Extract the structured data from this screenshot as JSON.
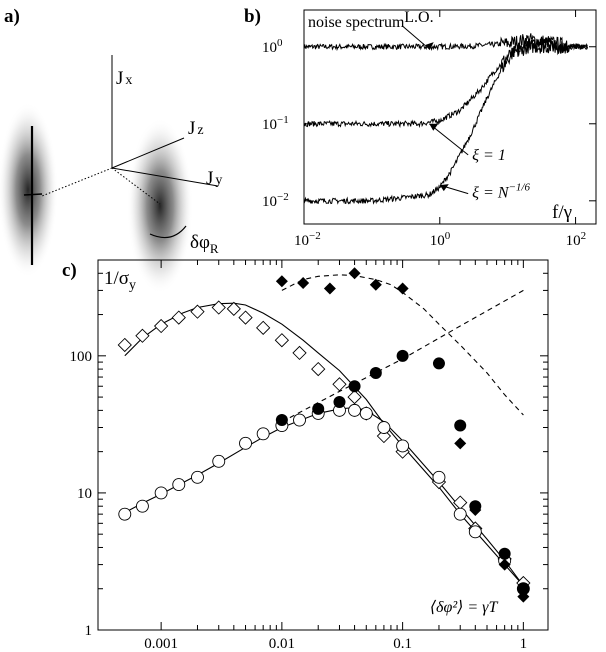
{
  "panels": {
    "a": {
      "label": "a)",
      "axes": [
        "J",
        "J",
        "J"
      ],
      "axis_subscripts": [
        "x",
        "z",
        "y"
      ],
      "angle_symbol": "δφ",
      "angle_subscript": "R"
    },
    "b": {
      "label": "b)"
    },
    "c": {
      "label": "c)"
    }
  },
  "chart_data": [
    {
      "panel": "b",
      "type": "line",
      "title": "noise spectrum",
      "xlabel": "f/γ",
      "ylabel": "",
      "xscale": "log",
      "yscale": "log",
      "xlim": [
        0.01,
        200
      ],
      "ylim": [
        0.005,
        3
      ],
      "x_ticks": [
        "10",
        "10",
        "10"
      ],
      "x_tick_exponents": [
        "−2",
        "0",
        "2"
      ],
      "y_ticks": [
        "10",
        "10",
        "10"
      ],
      "y_tick_exponents": [
        "−2",
        "−1",
        "0"
      ],
      "grid": false,
      "series": [
        {
          "name": "L.O.",
          "x": [
            0.01,
            0.1,
            1,
            3,
            10,
            20,
            40,
            100,
            150
          ],
          "y": [
            1.0,
            1.0,
            1.0,
            1.02,
            1.1,
            1.25,
            1.15,
            1.0,
            1.0
          ]
        },
        {
          "name": "ξ = 1",
          "x": [
            0.01,
            0.1,
            0.5,
            1,
            2,
            4,
            6,
            10,
            20,
            50,
            150
          ],
          "y": [
            0.1,
            0.1,
            0.1,
            0.11,
            0.15,
            0.28,
            0.45,
            0.75,
            1.0,
            1.0,
            1.0
          ]
        },
        {
          "name": "ξ = N^(−1/6)",
          "x": [
            0.01,
            0.1,
            0.3,
            0.7,
            1,
            1.5,
            2,
            3,
            5,
            8,
            12,
            20,
            50,
            150
          ],
          "y": [
            0.01,
            0.01,
            0.011,
            0.012,
            0.015,
            0.025,
            0.04,
            0.08,
            0.22,
            0.5,
            0.85,
            1.05,
            1.0,
            1.0
          ]
        }
      ],
      "annotations": [
        {
          "text": "L.O.",
          "x": 0.3,
          "y": 2.1
        },
        {
          "text": "ξ = 1",
          "x": 3,
          "y": 0.034
        },
        {
          "text": "ξ = N",
          "superscript": "−1/6",
          "x": 3,
          "y": 0.011
        }
      ]
    },
    {
      "panel": "c",
      "type": "scatter",
      "title": "",
      "xlabel": "",
      "ylabel": "1/σ",
      "ylabel_subscript": "y",
      "xscale": "log",
      "yscale": "log",
      "xlim": [
        0.0003,
        1.6
      ],
      "ylim": [
        1,
        500
      ],
      "x_ticks": [
        "0.001",
        "0.01",
        "0.1",
        "1"
      ],
      "y_ticks": [
        "1",
        "10",
        "100"
      ],
      "grid": false,
      "annotations": [
        {
          "text": "⟨δφ²⟩ = γT",
          "x": 0.32,
          "y": 1.35
        }
      ],
      "series": [
        {
          "marker": "open-diamond",
          "x": [
            0.0005,
            0.0007,
            0.001,
            0.0014,
            0.002,
            0.003,
            0.004,
            0.005,
            0.007,
            0.01,
            0.014,
            0.02,
            0.03,
            0.04,
            0.05,
            0.07,
            0.1,
            0.2,
            0.3,
            0.4,
            0.7,
            1.0
          ],
          "y": [
            120,
            140,
            165,
            190,
            210,
            225,
            220,
            190,
            160,
            130,
            105,
            80,
            62,
            50,
            38,
            26,
            20,
            12,
            8.5,
            5.5,
            3.3,
            2.2
          ]
        },
        {
          "marker": "open-circle",
          "x": [
            0.0005,
            0.0007,
            0.001,
            0.0014,
            0.002,
            0.003,
            0.005,
            0.007,
            0.01,
            0.014,
            0.02,
            0.03,
            0.04,
            0.05,
            0.07,
            0.1,
            0.2,
            0.3,
            0.4,
            0.7,
            1.0
          ],
          "y": [
            7,
            8,
            10,
            11.5,
            13,
            17,
            23,
            27,
            31,
            34,
            38,
            40,
            40,
            38,
            30,
            22,
            13,
            7,
            5.2,
            3.2,
            2.0
          ]
        },
        {
          "marker": "filled-diamond",
          "x": [
            0.01,
            0.015,
            0.025,
            0.04,
            0.06,
            0.1,
            0.3,
            0.4,
            0.7,
            1.0
          ],
          "y": [
            350,
            340,
            310,
            400,
            330,
            310,
            23,
            7.5,
            3.0,
            1.75
          ]
        },
        {
          "marker": "filled-circle",
          "x": [
            0.01,
            0.02,
            0.03,
            0.04,
            0.06,
            0.1,
            0.2,
            0.3,
            0.4,
            0.7,
            1.0
          ],
          "y": [
            34,
            41,
            46,
            60,
            75,
            100,
            88,
            31,
            8.0,
            3.6,
            2.0
          ]
        },
        {
          "line": "solid",
          "x": [
            0.0005,
            0.0007,
            0.001,
            0.0015,
            0.002,
            0.003,
            0.004,
            0.005,
            0.007,
            0.01,
            0.015,
            0.02,
            0.03,
            0.05,
            0.07,
            0.1,
            0.2,
            0.3,
            0.5,
            0.7,
            1.0
          ],
          "y": [
            100,
            135,
            170,
            205,
            225,
            240,
            242,
            235,
            205,
            170,
            130,
            105,
            78,
            48,
            32,
            22,
            11,
            7,
            4.2,
            3.0,
            2.1
          ]
        },
        {
          "line": "solid",
          "x": [
            0.0005,
            0.0007,
            0.001,
            0.002,
            0.003,
            0.005,
            0.007,
            0.01,
            0.015,
            0.02,
            0.03,
            0.04,
            0.05,
            0.07,
            0.1,
            0.2,
            0.3,
            0.5,
            0.7,
            1.0
          ],
          "y": [
            7.2,
            8.4,
            9.8,
            13.5,
            16.5,
            21.5,
            25.5,
            30,
            34.5,
            38,
            41,
            42,
            40,
            33,
            24,
            12,
            7.8,
            4.6,
            3.2,
            2.1
          ]
        },
        {
          "line": "dashed",
          "x": [
            0.01,
            0.015,
            0.02,
            0.03,
            0.04,
            0.06,
            0.08,
            0.1,
            0.15,
            0.2,
            0.3,
            0.5,
            0.7,
            1.0
          ],
          "y": [
            300,
            360,
            380,
            390,
            385,
            360,
            330,
            290,
            220,
            170,
            120,
            75,
            52,
            37
          ]
        },
        {
          "line": "dashed",
          "x": [
            0.01,
            0.03,
            0.1,
            0.3,
            1.0
          ],
          "y": [
            33,
            55,
            95,
            165,
            300
          ]
        }
      ]
    }
  ]
}
